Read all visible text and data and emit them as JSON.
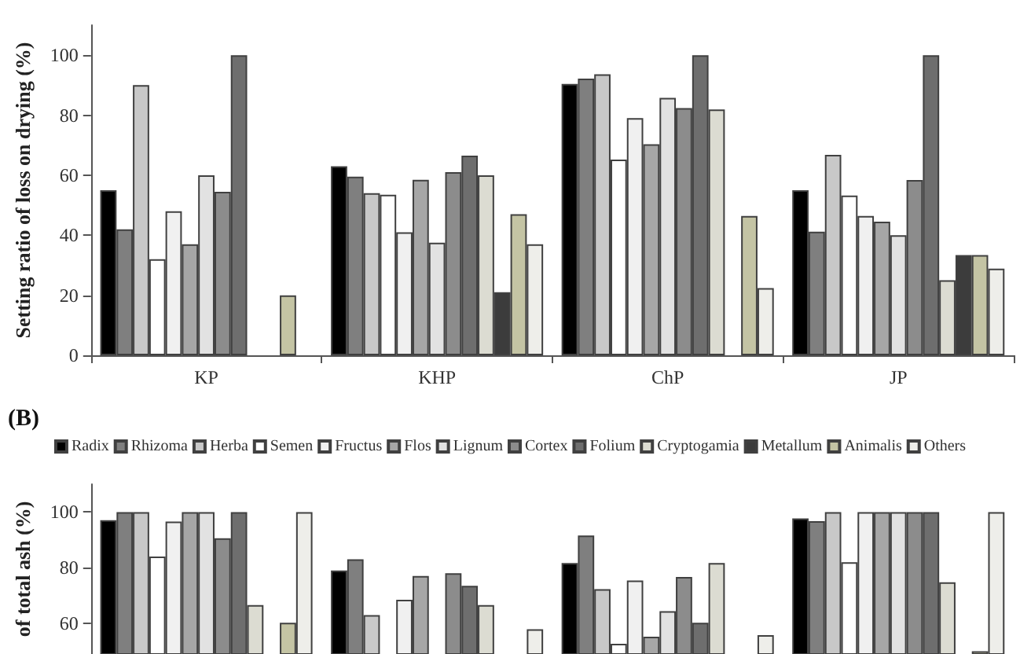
{
  "chart_data": [
    {
      "type": "bar",
      "ylabel": "Setting ratio of loss on drying (%)",
      "categories": [
        "KP",
        "KHP",
        "ChP",
        "JP"
      ],
      "ylim": [
        0,
        110
      ],
      "yticks": [
        0,
        20,
        40,
        60,
        80,
        100
      ],
      "grid": false,
      "legend": false,
      "series": [
        {
          "color": "#000000",
          "values": [
            55,
            63,
            90.4,
            55
          ]
        },
        {
          "color": "#7f7f7f",
          "values": [
            42,
            59.5,
            92.2,
            41.2
          ]
        },
        {
          "color": "#c8c8c8",
          "values": [
            90,
            54,
            93.6,
            66.8
          ]
        },
        {
          "color": "#ffffff",
          "values": [
            32,
            53.5,
            65.2,
            53.2
          ]
        },
        {
          "color": "#f0f0f0",
          "values": [
            48,
            41,
            79,
            46.4
          ]
        },
        {
          "color": "#a6a6a6",
          "values": [
            37,
            58.5,
            70.3,
            44.5
          ]
        },
        {
          "color": "#e2e2e2",
          "values": [
            60,
            37.5,
            85.8,
            40
          ]
        },
        {
          "color": "#8c8c8c",
          "values": [
            54.5,
            61,
            82.4,
            58.4
          ]
        },
        {
          "color": "#6e6e6e",
          "values": [
            100,
            66.5,
            100,
            100
          ]
        },
        {
          "color": "#dcdcd2",
          "values": [
            null,
            60,
            81.9,
            25
          ]
        },
        {
          "color": "#3c3c3c",
          "values": [
            null,
            21,
            null,
            33.4
          ]
        },
        {
          "color": "#c4c4a4",
          "values": [
            20,
            47,
            46.4,
            33.4
          ]
        },
        {
          "color": "#eeeeea",
          "values": [
            null,
            37,
            22.4,
            28.9
          ]
        }
      ]
    },
    {
      "type": "bar",
      "title": "(B)",
      "ylabel": "of total ash (%)",
      "categories": [
        null,
        null,
        null,
        null
      ],
      "ylim": [
        49,
        110
      ],
      "yticks": [
        60,
        80,
        100
      ],
      "grid": false,
      "legend": "top",
      "tick_labels": "y",
      "series": [
        {
          "name": "Radix",
          "color": "#000000",
          "values": [
            97.1,
            79,
            81.7,
            97.7
          ]
        },
        {
          "name": "Rhizoma",
          "color": "#7f7f7f",
          "values": [
            100,
            83,
            91.6,
            96.7
          ]
        },
        {
          "name": "Herba",
          "color": "#c8c8c8",
          "values": [
            100,
            63,
            72.3,
            100
          ]
        },
        {
          "name": "Semen",
          "color": "#ffffff",
          "values": [
            84,
            null,
            52.7,
            82
          ]
        },
        {
          "name": "Fructus",
          "color": "#f0f0f0",
          "values": [
            96.6,
            68.5,
            75.4,
            100
          ]
        },
        {
          "name": "Flos",
          "color": "#a6a6a6",
          "values": [
            100,
            77,
            55.2,
            100
          ]
        },
        {
          "name": "Lignum",
          "color": "#e2e2e2",
          "values": [
            100,
            null,
            64.4,
            100
          ]
        },
        {
          "name": "Cortex",
          "color": "#8c8c8c",
          "values": [
            90.6,
            78,
            76.7,
            100
          ]
        },
        {
          "name": "Folium",
          "color": "#6e6e6e",
          "values": [
            100,
            73.5,
            60.2,
            100
          ]
        },
        {
          "name": "Cryptogamia",
          "color": "#dcdcd2",
          "values": [
            66.6,
            66.6,
            81.7,
            74.8
          ]
        },
        {
          "name": "Metallum",
          "color": "#3c3c3c",
          "values": [
            null,
            null,
            null,
            null
          ]
        },
        {
          "name": "Animalis",
          "color": "#c4c4a4",
          "values": [
            60.2,
            null,
            null,
            50
          ]
        },
        {
          "name": "Others",
          "color": "#eeeeea",
          "values": [
            100,
            57.9,
            55.8,
            100
          ]
        }
      ]
    }
  ]
}
